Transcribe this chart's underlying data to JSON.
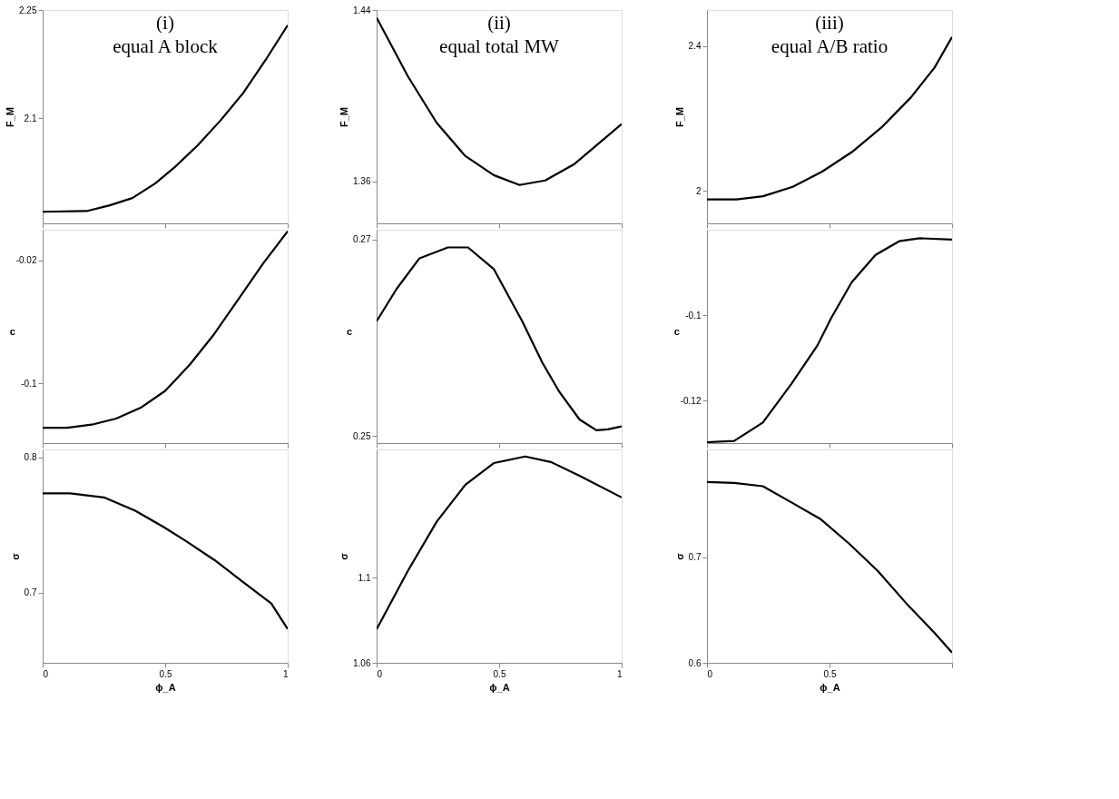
{
  "chart_data": [
    {
      "type": "line",
      "ylabel": "F_M",
      "annotations": [
        "(i)",
        "equal A block"
      ],
      "color": "#000000",
      "x": [
        0,
        0.18,
        0.274,
        0.366,
        0.459,
        0.54,
        0.633,
        0.725,
        0.818,
        0.91,
        1
      ],
      "values": [
        1.971,
        1.972,
        1.98,
        1.99,
        2.01,
        2.033,
        2.063,
        2.097,
        2.135,
        2.181,
        2.229
      ],
      "xlim": [
        0,
        1
      ],
      "xticks": [
        0,
        0.5,
        1
      ],
      "ylim": [
        1.955,
        2.25
      ],
      "yticks": [
        2.1,
        2.25
      ],
      "tick_labels": "y",
      "grid": false
    },
    {
      "type": "line",
      "ylabel": "F_M",
      "annotations": [
        "(ii)",
        "equal total MW"
      ],
      "color": "#000000",
      "x": [
        0,
        0.128,
        0.245,
        0.361,
        0.478,
        0.583,
        0.688,
        0.805,
        0.898,
        1
      ],
      "values": [
        1.4364,
        1.409,
        1.3874,
        1.372,
        1.363,
        1.3584,
        1.3605,
        1.368,
        1.377,
        1.3868
      ],
      "xlim": [
        0,
        1
      ],
      "xticks": [
        0,
        0.5,
        1
      ],
      "ylim": [
        1.3405,
        1.44
      ],
      "yticks": [
        1.36,
        1.44
      ],
      "tick_labels": "y",
      "grid": false
    },
    {
      "type": "line",
      "ylabel": "F_M",
      "annotations": [
        "(iii)",
        "equal A/B ratio"
      ],
      "color": "#000000",
      "x": [
        0,
        0.121,
        0.229,
        0.35,
        0.47,
        0.591,
        0.712,
        0.832,
        0.929,
        1
      ],
      "values": [
        1.976,
        1.976,
        1.985,
        2.011,
        2.053,
        2.107,
        2.175,
        2.258,
        2.341,
        2.425
      ],
      "xlim": [
        0,
        1
      ],
      "xticks": [
        0,
        0.5,
        1
      ],
      "ylim": [
        1.91,
        2.5
      ],
      "yticks": [
        2,
        2.4
      ],
      "tick_labels": "y",
      "grid": false
    },
    {
      "type": "line",
      "ylabel": "c",
      "color": "#000000",
      "x": [
        0,
        0.1,
        0.2,
        0.3,
        0.4,
        0.5,
        0.6,
        0.7,
        0.8,
        0.9,
        1
      ],
      "values": [
        -0.129,
        -0.129,
        -0.127,
        -0.123,
        -0.116,
        -0.105,
        -0.088,
        -0.068,
        -0.045,
        -0.022,
        -0.001
      ],
      "xlim": [
        0,
        1
      ],
      "xticks": [
        0,
        0.5,
        1
      ],
      "ylim": [
        -0.139,
        0
      ],
      "yticks": [
        -0.1,
        -0.02
      ],
      "tick_labels": "y",
      "grid": false
    },
    {
      "type": "line",
      "ylabel": "c",
      "color": "#000000",
      "x": [
        0,
        0.082,
        0.175,
        0.291,
        0.373,
        0.478,
        0.594,
        0.676,
        0.746,
        0.828,
        0.897,
        0.944,
        1
      ],
      "values": [
        0.2617,
        0.265,
        0.2681,
        0.2692,
        0.2692,
        0.267,
        0.2617,
        0.2575,
        0.2545,
        0.2517,
        0.2506,
        0.2507,
        0.251
      ],
      "xlim": [
        0,
        1
      ],
      "xticks": [
        0,
        0.5,
        1
      ],
      "ylim": [
        0.2493,
        0.271
      ],
      "yticks": [
        0.25,
        0.27
      ],
      "tick_labels": "y",
      "grid": false
    },
    {
      "type": "line",
      "ylabel": "c",
      "color": "#000000",
      "x": [
        0,
        0.111,
        0.228,
        0.345,
        0.451,
        0.507,
        0.591,
        0.688,
        0.784,
        0.869,
        1
      ],
      "values": [
        -0.1298,
        -0.1295,
        -0.1252,
        -0.1161,
        -0.1071,
        -0.1007,
        -0.0923,
        -0.0859,
        -0.0827,
        -0.082,
        -0.0823
      ],
      "xlim": [
        0,
        1
      ],
      "xticks": [
        0,
        0.5,
        1
      ],
      "ylim": [
        -0.13,
        -0.08
      ],
      "yticks": [
        -0.12,
        -0.1
      ],
      "tick_labels": "y",
      "grid": false
    },
    {
      "type": "line",
      "ylabel": "σ",
      "xlabel": "ϕ_A",
      "color": "#000000",
      "x": [
        0,
        0.112,
        0.25,
        0.378,
        0.494,
        0.586,
        0.702,
        0.817,
        0.933,
        1
      ],
      "values": [
        0.7735,
        0.7735,
        0.7705,
        0.7606,
        0.7485,
        0.738,
        0.724,
        0.708,
        0.692,
        0.673
      ],
      "xlim": [
        0,
        1
      ],
      "xticks": [
        0,
        0.5,
        1
      ],
      "ylim": [
        0.648,
        0.806
      ],
      "yticks": [
        0.7,
        0.8
      ],
      "grid": false
    },
    {
      "type": "line",
      "ylabel": "σ",
      "xlabel": "ϕ_A",
      "color": "#000000",
      "x": [
        0,
        0.128,
        0.245,
        0.361,
        0.478,
        0.606,
        0.711,
        0.828,
        1
      ],
      "values": [
        1.0757,
        1.1032,
        1.1261,
        1.1433,
        1.1536,
        1.1567,
        1.1541,
        1.1477,
        1.1375
      ],
      "xlim": [
        0,
        1
      ],
      "xticks": [
        0,
        0.5,
        1
      ],
      "ylim": [
        1.06,
        1.16
      ],
      "yticks": [
        1.06,
        1.1
      ],
      "grid": false
    },
    {
      "type": "line",
      "ylabel": "σ",
      "xlabel": "ϕ_A",
      "color": "#000000",
      "x": [
        0,
        0.111,
        0.228,
        0.345,
        0.462,
        0.579,
        0.696,
        0.813,
        0.931,
        1
      ],
      "values": [
        0.7711,
        0.7703,
        0.7672,
        0.7518,
        0.7363,
        0.713,
        0.6873,
        0.6564,
        0.6278,
        0.6097
      ],
      "xlim": [
        0,
        1
      ],
      "xticks": [
        0,
        0.5,
        {
          "value": 1,
          "label": null
        }
      ],
      "ylim": [
        0.6,
        0.802
      ],
      "yticks": [
        0.6,
        0.7
      ],
      "grid": false
    }
  ]
}
